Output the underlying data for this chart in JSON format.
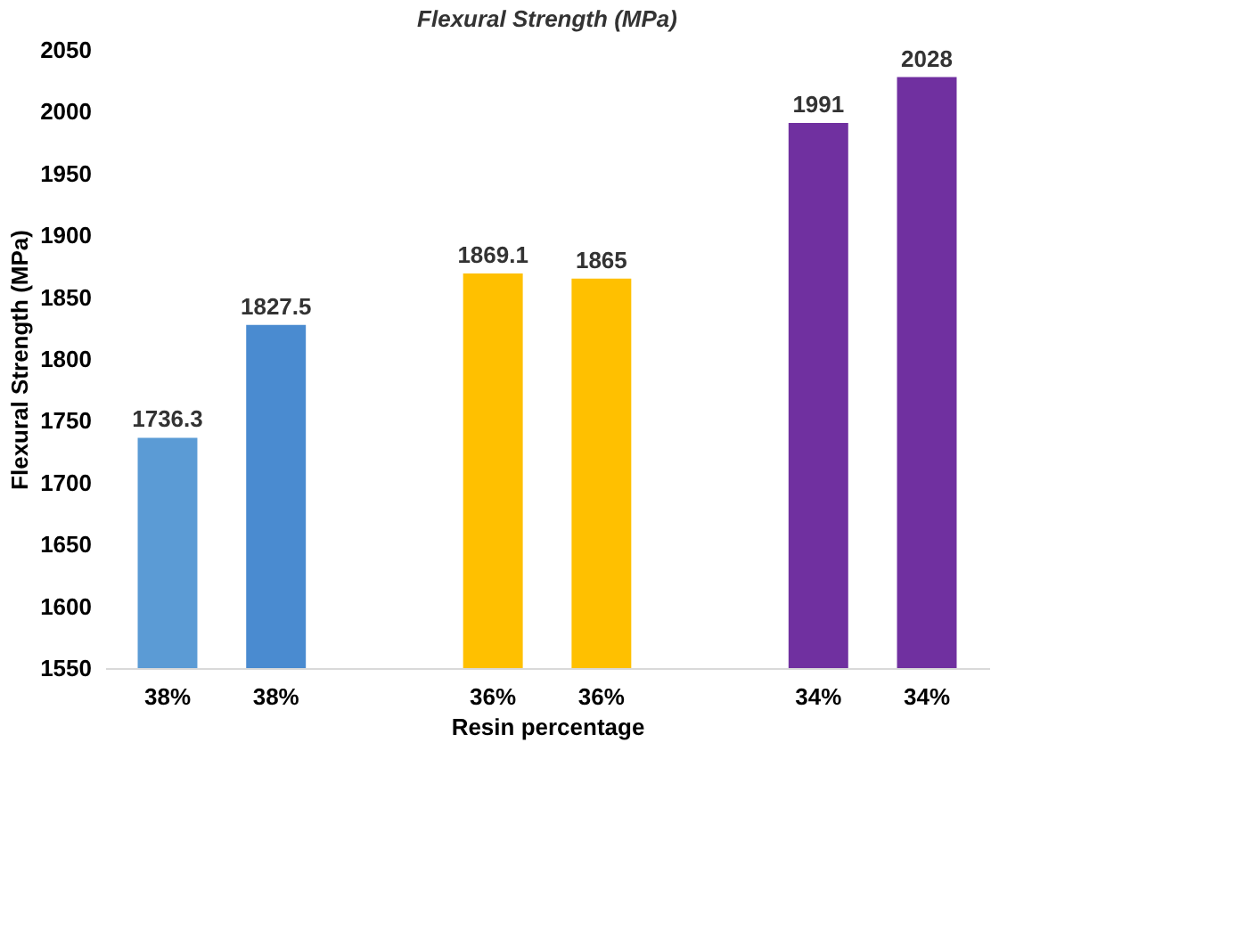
{
  "chart_data": {
    "type": "bar",
    "title": "Flexural Strength  (MPa)",
    "xlabel": "Resin percentage",
    "ylabel": "Flexural Strength  (MPa)",
    "categories": [
      "38%",
      "38%",
      null,
      "36%",
      "36%",
      null,
      "34%",
      "34%"
    ],
    "values": [
      1736.3,
      1827.5,
      null,
      1869.1,
      1865,
      null,
      1991,
      2028
    ],
    "colors": [
      "#5b9bd5",
      "#4a8bd0",
      null,
      "#ffc000",
      "#ffc000",
      null,
      "#7030a0",
      "#7030a0"
    ],
    "ylim": [
      1550,
      2050
    ],
    "yticks": [
      1550,
      1600,
      1650,
      1700,
      1750,
      1800,
      1850,
      1900,
      1950,
      2000,
      2050
    ],
    "grid": false,
    "data_labels": true
  }
}
